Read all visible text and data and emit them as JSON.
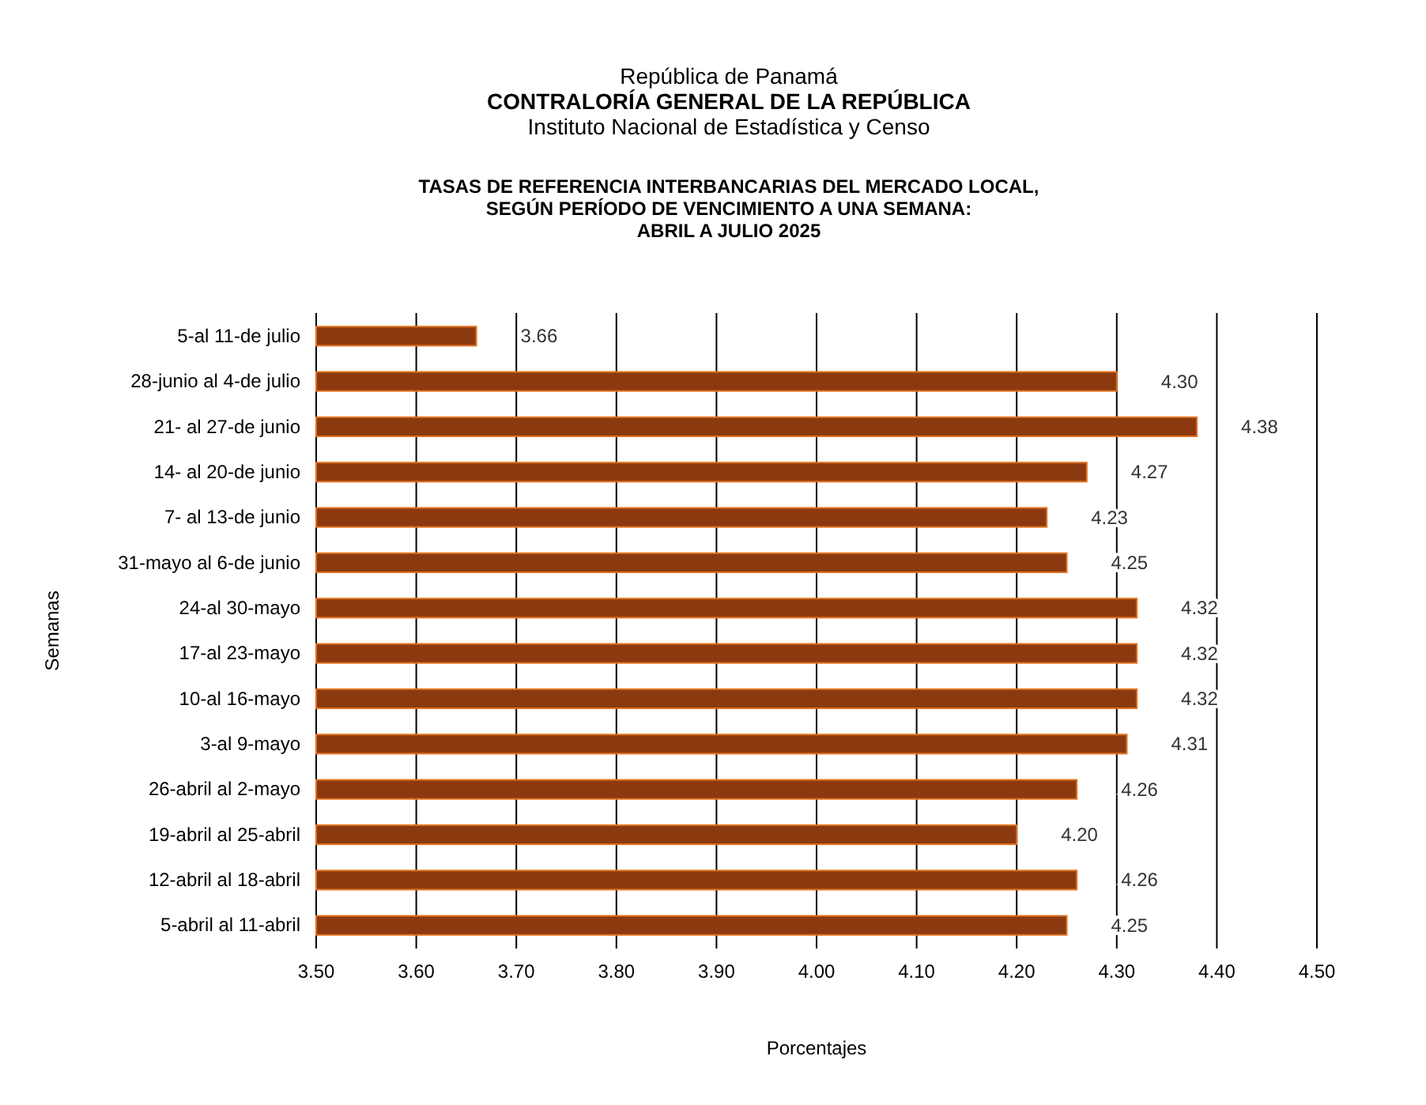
{
  "chart_data": {
    "type": "bar",
    "orientation": "horizontal",
    "title": "TASAS DE REFERENCIA INTERBANCARIAS DEL MERCADO LOCAL,\nSEGÚN PERÍODO DE VENCIMIENTO A UNA SEMANA:\nABRIL A JULIO 2025",
    "annotations": [
      "República de Panamá",
      "CONTRALORÍA GENERAL DE LA REPÚBLICA",
      "Instituto Nacional de Estadística y Censo"
    ],
    "xlabel": "Porcentajes",
    "ylabel": "Semanas",
    "categories": [
      "5-al 11-de julio",
      "28-junio al 4-de julio",
      "21- al 27-de junio",
      "14- al 20-de junio",
      "7- al 13-de junio",
      "31-mayo al 6-de junio",
      "24-al 30-mayo",
      "17-al 23-mayo",
      "10-al 16-mayo",
      "3-al 9-mayo",
      "26-abril al 2-mayo",
      "19-abril al 25-abril",
      "12-abril al 18-abril",
      "5-abril al 11-abril"
    ],
    "values": [
      3.66,
      4.3,
      4.38,
      4.27,
      4.23,
      4.25,
      4.32,
      4.32,
      4.32,
      4.31,
      4.26,
      4.2,
      4.26,
      4.25
    ],
    "value_labels": [
      "3.66",
      "4.30",
      "4.38",
      "4.27",
      "4.23",
      "4.25",
      "4.32",
      "4.32",
      "4.32",
      "4.31",
      "4.26",
      "4.20",
      "4.26",
      "4.25"
    ],
    "color": "#8b3a0f",
    "xlim": [
      3.5,
      4.5
    ],
    "xticks": [
      {
        "value": 3.5,
        "label": "3.50"
      },
      {
        "value": 3.6,
        "label": "3.60"
      },
      {
        "value": 3.7,
        "label": "3.70"
      },
      {
        "value": 3.8,
        "label": "3.80"
      },
      {
        "value": 3.9,
        "label": "3.90"
      },
      {
        "value": 4.0,
        "label": "4.00"
      },
      {
        "value": 4.1,
        "label": "4.10"
      },
      {
        "value": 4.2,
        "label": "4.20"
      },
      {
        "value": 4.3,
        "label": "4.30"
      },
      {
        "value": 4.4,
        "label": "4.40"
      },
      {
        "value": 4.5,
        "label": "4.50"
      }
    ],
    "grid": "x"
  }
}
